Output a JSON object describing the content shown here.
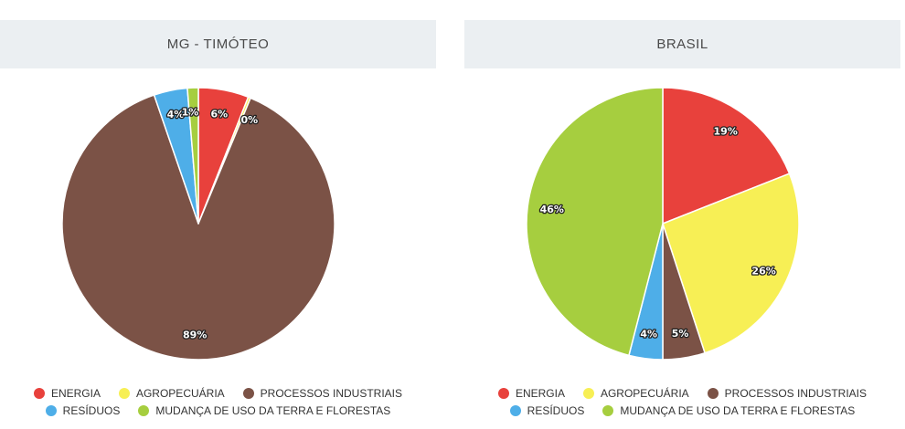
{
  "chart_data": [
    {
      "type": "pie",
      "title": "MG - TIMÓTEO",
      "slices": [
        {
          "name": "ENERGIA",
          "value": 6,
          "label": "6%",
          "color": "#e8413c"
        },
        {
          "name": "AGROPECUÁRIA",
          "value": 0.3,
          "label": "0%",
          "color": "#f7ef55"
        },
        {
          "name": "PROCESSOS INDUSTRIAIS",
          "value": 89,
          "label": "89%",
          "color": "#7b5246"
        },
        {
          "name": "RESÍDUOS",
          "value": 4,
          "label": "4%",
          "color": "#4eaee8"
        },
        {
          "name": "MUDANÇA DE USO DA TERRA E FLORESTAS",
          "value": 1.3,
          "label": "1%",
          "color": "#a6ce3f"
        }
      ],
      "legend": "bottom"
    },
    {
      "type": "pie",
      "title": "BRASIL",
      "slices": [
        {
          "name": "ENERGIA",
          "value": 19,
          "label": "19%",
          "color": "#e8413c"
        },
        {
          "name": "AGROPECUÁRIA",
          "value": 26,
          "label": "26%",
          "color": "#f7ef55"
        },
        {
          "name": "PROCESSOS INDUSTRIAIS",
          "value": 5,
          "label": "5%",
          "color": "#7b5246"
        },
        {
          "name": "RESÍDUOS",
          "value": 4,
          "label": "4%",
          "color": "#4eaee8"
        },
        {
          "name": "MUDANÇA DE USO DA TERRA E FLORESTAS",
          "value": 46,
          "label": "46%",
          "color": "#a6ce3f"
        }
      ],
      "legend": "bottom"
    }
  ]
}
